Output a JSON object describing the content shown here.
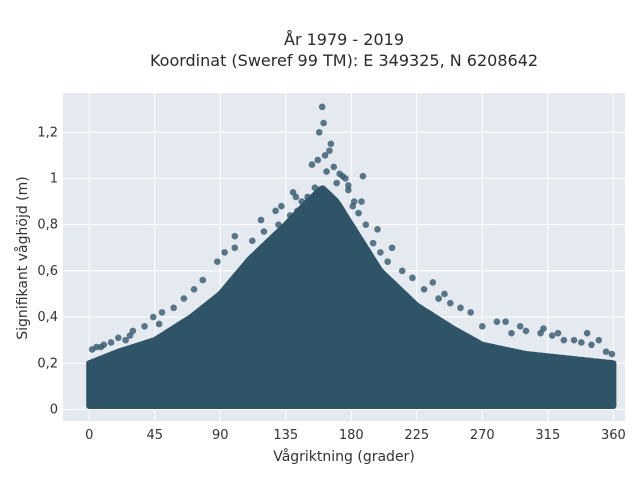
{
  "chart_data": {
    "type": "scatter",
    "title": "År 1979 - 2019",
    "subtitle": "Koordinat (Sweref 99 TM): E 349325, N 6208642",
    "xlabel": "Vågriktning (grader)",
    "ylabel": "Signifikant våghöjd (m)",
    "xlim": [
      -18,
      368
    ],
    "ylim": [
      -0.05,
      1.37
    ],
    "xticks": [
      0,
      45,
      90,
      135,
      180,
      225,
      270,
      315,
      360
    ],
    "xtick_labels": [
      "0",
      "45",
      "90",
      "135",
      "180",
      "225",
      "270",
      "315",
      "360"
    ],
    "yticks": [
      0,
      0.2,
      0.4,
      0.6,
      0.8,
      1.0,
      1.2
    ],
    "ytick_labels": [
      "0",
      "0,2",
      "0,4",
      "0,6",
      "0,8",
      "1",
      "1,2"
    ],
    "grid": true,
    "color": "#2f5468",
    "envelope": {
      "x": [
        0,
        20,
        45,
        70,
        90,
        110,
        135,
        150,
        160,
        170,
        180,
        200,
        225,
        250,
        270,
        300,
        330,
        360
      ],
      "y": [
        0.2,
        0.25,
        0.3,
        0.4,
        0.5,
        0.65,
        0.8,
        0.9,
        0.96,
        0.9,
        0.8,
        0.6,
        0.45,
        0.35,
        0.28,
        0.24,
        0.22,
        0.2
      ]
    },
    "series": [
      {
        "x": [
          160,
          161,
          158,
          166,
          162,
          157,
          168,
          163,
          174,
          176,
          170,
          155,
          178,
          150,
          182,
          181,
          146,
          185,
          143,
          190,
          138,
          195,
          130,
          200,
          120,
          205,
          112,
          215,
          100,
          222,
          93,
          230,
          88,
          240,
          78,
          248,
          72,
          255,
          65,
          262,
          58,
          270,
          50,
          280,
          44,
          290,
          38,
          300,
          30,
          310,
          25,
          318,
          20,
          326,
          15,
          333,
          10,
          338,
          5,
          345,
          2,
          350,
          355,
          359,
          8,
          28,
          48,
          100,
          118,
          128,
          198,
          208,
          236,
          244,
          286,
          296,
          312,
          322,
          342,
          132,
          142,
          172,
          188,
          153,
          165,
          178,
          140,
          187
        ],
        "y": [
          1.31,
          1.24,
          1.2,
          1.15,
          1.1,
          1.08,
          1.05,
          1.03,
          1.01,
          1.0,
          0.98,
          0.96,
          0.95,
          0.92,
          0.9,
          0.88,
          0.9,
          0.85,
          0.86,
          0.8,
          0.84,
          0.72,
          0.8,
          0.68,
          0.77,
          0.64,
          0.73,
          0.6,
          0.7,
          0.57,
          0.68,
          0.52,
          0.64,
          0.48,
          0.56,
          0.46,
          0.52,
          0.44,
          0.48,
          0.42,
          0.44,
          0.36,
          0.42,
          0.38,
          0.4,
          0.33,
          0.36,
          0.34,
          0.34,
          0.33,
          0.3,
          0.32,
          0.31,
          0.3,
          0.29,
          0.3,
          0.28,
          0.29,
          0.27,
          0.28,
          0.26,
          0.3,
          0.25,
          0.24,
          0.27,
          0.32,
          0.37,
          0.75,
          0.82,
          0.86,
          0.78,
          0.7,
          0.55,
          0.5,
          0.38,
          0.36,
          0.35,
          0.33,
          0.33,
          0.88,
          0.92,
          1.02,
          1.01,
          1.06,
          1.12,
          0.97,
          0.94,
          0.9
        ]
      }
    ]
  }
}
